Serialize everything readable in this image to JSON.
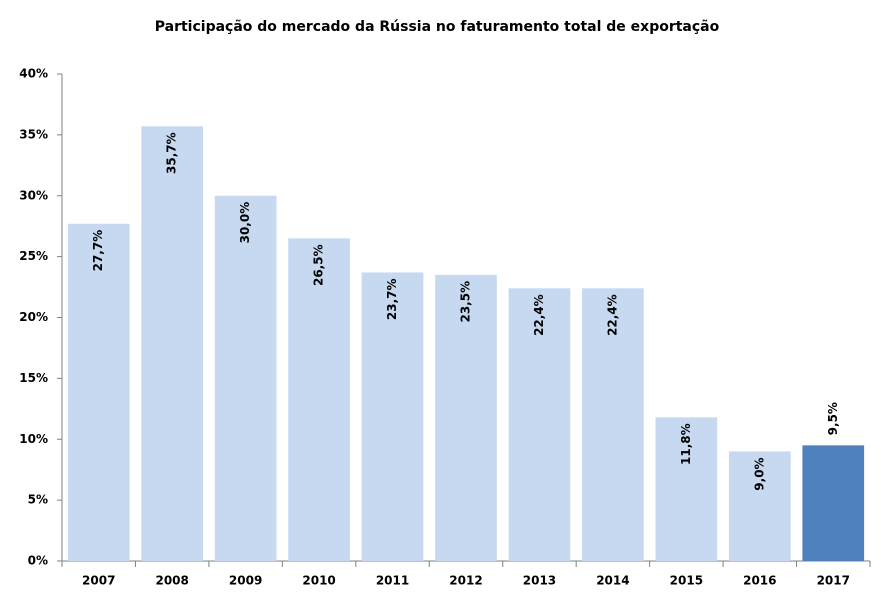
{
  "chart_data": {
    "type": "bar",
    "title": "Participação do mercado da Rússia no faturamento total de exportação",
    "categories": [
      "2007",
      "2008",
      "2009",
      "2010",
      "2011",
      "2012",
      "2013",
      "2014",
      "2015",
      "2016",
      "2017"
    ],
    "values": [
      27.7,
      35.7,
      30.0,
      26.5,
      23.7,
      23.5,
      22.4,
      22.4,
      11.8,
      9.0,
      9.5
    ],
    "value_labels": [
      "27,7%",
      "35,7%",
      "30,0%",
      "26,5%",
      "23,7%",
      "23,5%",
      "22,4%",
      "22,4%",
      "11,8%",
      "9,0%",
      "9,5%"
    ],
    "colors": [
      "#c6d9f1",
      "#c6d9f1",
      "#c6d9f1",
      "#c6d9f1",
      "#c6d9f1",
      "#c6d9f1",
      "#c6d9f1",
      "#c6d9f1",
      "#c6d9f1",
      "#c6d9f1",
      "#4f81bd"
    ],
    "label_positions": [
      "inside_end",
      "inside_end",
      "inside_end",
      "inside_end",
      "inside_end",
      "inside_end",
      "inside_end",
      "inside_end",
      "inside_end",
      "inside_end",
      "outside_end"
    ],
    "ylim": [
      0,
      40
    ],
    "yticks": [
      {
        "value": 0,
        "label": "0%"
      },
      {
        "value": 5,
        "label": "5%"
      },
      {
        "value": 10,
        "label": "10%"
      },
      {
        "value": 15,
        "label": "15%"
      },
      {
        "value": 20,
        "label": "20%"
      },
      {
        "value": 25,
        "label": "25%"
      },
      {
        "value": 30,
        "label": "30%"
      },
      {
        "value": 35,
        "label": "35%"
      },
      {
        "value": 40,
        "label": "40%"
      }
    ],
    "grid": false
  }
}
